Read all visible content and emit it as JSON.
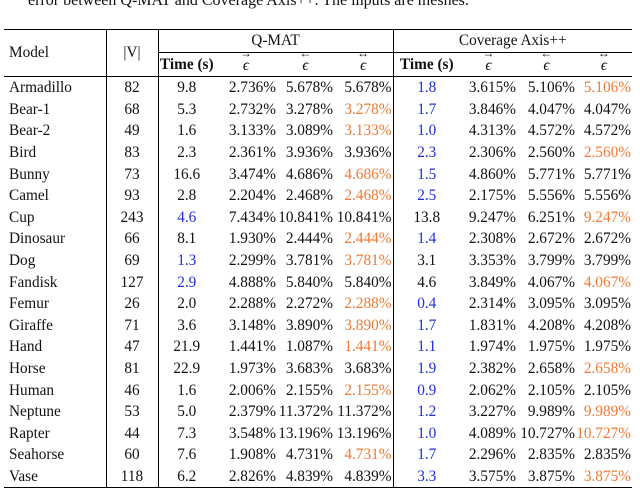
{
  "caption": "error between Q-MAT and Coverage Axis++. The inputs are meshes.",
  "header": {
    "model": "Model",
    "v": "|V|",
    "group1": "Q-MAT",
    "group2": "Coverage Axis++",
    "time": "Time (s)",
    "eps_fwd": "ϵ",
    "eps_bwd": "ϵ",
    "eps_both": "ϵ",
    "arrow_fwd": "→",
    "arrow_bwd": "←",
    "arrow_both": "↔"
  },
  "rows": [
    {
      "model": "Armadillo",
      "v": "82",
      "qt": "9.8",
      "q1": "2.736%",
      "q2": "5.678%",
      "q3": "5.678%",
      "ct": "1.8",
      "c1": "3.615%",
      "c2": "5.106%",
      "c3": "5.106%",
      "ctb": 1,
      "q3o": 0,
      "c3o": 1
    },
    {
      "model": "Bear-1",
      "v": "68",
      "qt": "5.3",
      "q1": "2.732%",
      "q2": "3.278%",
      "q3": "3.278%",
      "ct": "1.7",
      "c1": "3.846%",
      "c2": "4.047%",
      "c3": "4.047%",
      "ctb": 1,
      "q3o": 1,
      "c3o": 0
    },
    {
      "model": "Bear-2",
      "v": "49",
      "qt": "1.6",
      "q1": "3.133%",
      "q2": "3.089%",
      "q3": "3.133%",
      "ct": "1.0",
      "c1": "4.313%",
      "c2": "4.572%",
      "c3": "4.572%",
      "ctb": 1,
      "q3o": 1,
      "c3o": 0
    },
    {
      "model": "Bird",
      "v": "83",
      "qt": "2.3",
      "q1": "2.361%",
      "q2": "3.936%",
      "q3": "3.936%",
      "ct": "2.3",
      "c1": "2.306%",
      "c2": "2.560%",
      "c3": "2.560%",
      "ctb": 1,
      "q3o": 0,
      "c3o": 1
    },
    {
      "model": "Bunny",
      "v": "73",
      "qt": "16.6",
      "q1": "3.474%",
      "q2": "4.686%",
      "q3": "4.686%",
      "ct": "1.5",
      "c1": "4.860%",
      "c2": "5.771%",
      "c3": "5.771%",
      "ctb": 1,
      "q3o": 1,
      "c3o": 0
    },
    {
      "model": "Camel",
      "v": "93",
      "qt": "2.8",
      "q1": "2.204%",
      "q2": "2.468%",
      "q3": "2.468%",
      "ct": "2.5",
      "c1": "2.175%",
      "c2": "5.556%",
      "c3": "5.556%",
      "ctb": 1,
      "q3o": 1,
      "c3o": 0
    },
    {
      "model": "Cup",
      "v": "243",
      "qt": "4.6",
      "q1": "7.434%",
      "q2": "10.841%",
      "q3": "10.841%",
      "ct": "13.8",
      "c1": "9.247%",
      "c2": "6.251%",
      "c3": "9.247%",
      "qtb": 1,
      "q3o": 0,
      "c3o": 1
    },
    {
      "model": "Dinosaur",
      "v": "66",
      "qt": "8.1",
      "q1": "1.930%",
      "q2": "2.444%",
      "q3": "2.444%",
      "ct": "1.4",
      "c1": "2.308%",
      "c2": "2.672%",
      "c3": "2.672%",
      "ctb": 1,
      "q3o": 1,
      "c3o": 0
    },
    {
      "model": "Dog",
      "v": "69",
      "qt": "1.3",
      "q1": "2.299%",
      "q2": "3.781%",
      "q3": "3.781%",
      "ct": "3.1",
      "c1": "3.353%",
      "c2": "3.799%",
      "c3": "3.799%",
      "qtb": 1,
      "q3o": 1,
      "c3o": 0
    },
    {
      "model": "Fandisk",
      "v": "127",
      "qt": "2.9",
      "q1": "4.888%",
      "q2": "5.840%",
      "q3": "5.840%",
      "ct": "4.6",
      "c1": "3.849%",
      "c2": "4.067%",
      "c3": "4.067%",
      "qtb": 1,
      "q3o": 0,
      "c3o": 1
    },
    {
      "model": "Femur",
      "v": "26",
      "qt": "2.0",
      "q1": "2.288%",
      "q2": "2.272%",
      "q3": "2.288%",
      "ct": "0.4",
      "c1": "2.314%",
      "c2": "3.095%",
      "c3": "3.095%",
      "ctb": 1,
      "q3o": 1,
      "c3o": 0
    },
    {
      "model": "Giraffe",
      "v": "71",
      "qt": "3.6",
      "q1": "3.148%",
      "q2": "3.890%",
      "q3": "3.890%",
      "ct": "1.7",
      "c1": "1.831%",
      "c2": "4.208%",
      "c3": "4.208%",
      "ctb": 1,
      "q3o": 1,
      "c3o": 0
    },
    {
      "model": "Hand",
      "v": "47",
      "qt": "21.9",
      "q1": "1.441%",
      "q2": "1.087%",
      "q3": "1.441%",
      "ct": "1.1",
      "c1": "1.974%",
      "c2": "1.975%",
      "c3": "1.975%",
      "ctb": 1,
      "q3o": 1,
      "c3o": 0
    },
    {
      "model": "Horse",
      "v": "81",
      "qt": "22.9",
      "q1": "1.973%",
      "q2": "3.683%",
      "q3": "3.683%",
      "ct": "1.9",
      "c1": "2.382%",
      "c2": "2.658%",
      "c3": "2.658%",
      "ctb": 1,
      "q3o": 0,
      "c3o": 1
    },
    {
      "model": "Human",
      "v": "46",
      "qt": "1.6",
      "q1": "2.006%",
      "q2": "2.155%",
      "q3": "2.155%",
      "ct": "0.9",
      "c1": "2.062%",
      "c2": "2.105%",
      "c3": "2.105%",
      "ctb": 1,
      "q3o": 1,
      "c3o": 0
    },
    {
      "model": "Neptune",
      "v": "53",
      "qt": "5.0",
      "q1": "2.379%",
      "q2": "11.372%",
      "q3": "11.372%",
      "ct": "1.2",
      "c1": "3.227%",
      "c2": "9.989%",
      "c3": "9.989%",
      "ctb": 1,
      "q3o": 0,
      "c3o": 1
    },
    {
      "model": "Rapter",
      "v": "44",
      "qt": "7.3",
      "q1": "3.548%",
      "q2": "13.196%",
      "q3": "13.196%",
      "ct": "1.0",
      "c1": "4.089%",
      "c2": "10.727%",
      "c3": "10.727%",
      "ctb": 1,
      "q3o": 0,
      "c3o": 1
    },
    {
      "model": "Seahorse",
      "v": "60",
      "qt": "7.6",
      "q1": "1.908%",
      "q2": "4.731%",
      "q3": "4.731%",
      "ct": "1.7",
      "c1": "2.296%",
      "c2": "2.835%",
      "c3": "2.835%",
      "ctb": 1,
      "q3o": 1,
      "c3o": 0
    },
    {
      "model": "Vase",
      "v": "118",
      "qt": "6.2",
      "q1": "2.826%",
      "q2": "4.839%",
      "q3": "4.839%",
      "ct": "3.3",
      "c1": "3.575%",
      "c2": "3.875%",
      "c3": "3.875%",
      "ctb": 1,
      "q3o": 0,
      "c3o": 1
    }
  ],
  "colors": {
    "best_time": "#1f2fd6",
    "highlight": "#ee7a33"
  }
}
